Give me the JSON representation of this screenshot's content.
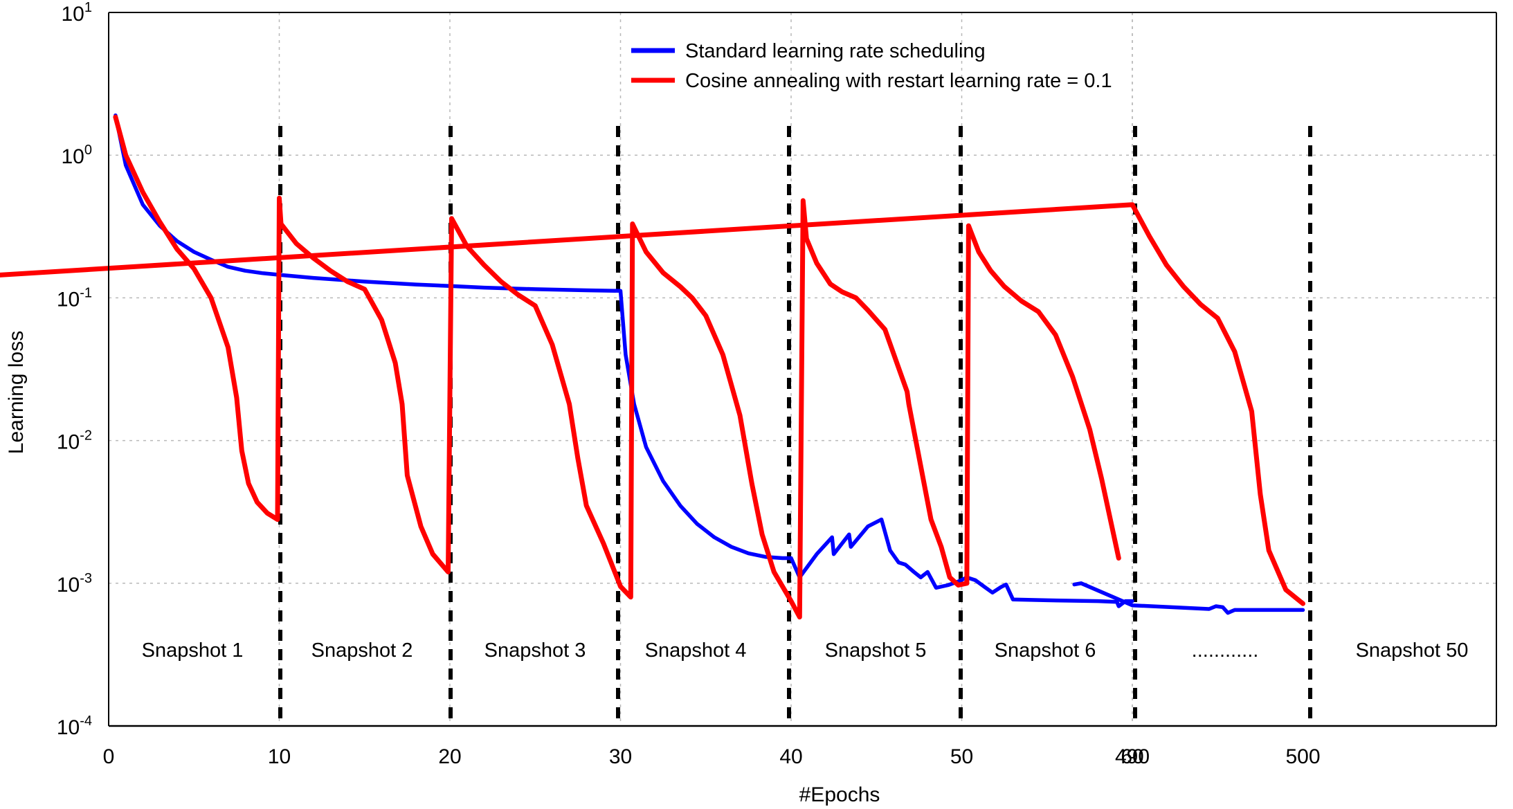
{
  "chart_data": {
    "type": "line",
    "title": "",
    "xlabel": "#Epochs",
    "ylabel": "Learning loss",
    "y_scale": "log",
    "ylim": [
      0.0001,
      10
    ],
    "y_ticks": [
      {
        "base": "10",
        "exp": "1",
        "value": 10
      },
      {
        "base": "10",
        "exp": "0",
        "value": 1
      },
      {
        "base": "10",
        "exp": "-1",
        "value": 0.1
      },
      {
        "base": "10",
        "exp": "-2",
        "value": 0.01
      },
      {
        "base": "10",
        "exp": "-3",
        "value": 0.001
      },
      {
        "base": "10",
        "exp": "-4",
        "value": 0.0001
      }
    ],
    "x_ticks": [
      "0",
      "10",
      "20",
      "30",
      "40",
      "50",
      "60",
      "490",
      "500"
    ],
    "grid": true,
    "legend_position": "top-center",
    "snapshot_labels": [
      "Snapshot 1",
      "Snapshot 2",
      "Snapshot 3",
      "Snapshot 4",
      "Snapshot 5",
      "Snapshot 6",
      "............",
      "Snapshot 50"
    ],
    "series": [
      {
        "name": "Standard learning rate scheduling",
        "color": "#0000ff",
        "points": [
          [
            0.4,
            1.9
          ],
          [
            1,
            0.85
          ],
          [
            2,
            0.45
          ],
          [
            3,
            0.32
          ],
          [
            4,
            0.25
          ],
          [
            5,
            0.21
          ],
          [
            6,
            0.185
          ],
          [
            7,
            0.165
          ],
          [
            8,
            0.155
          ],
          [
            9,
            0.149
          ],
          [
            10,
            0.145
          ],
          [
            12,
            0.138
          ],
          [
            15,
            0.13
          ],
          [
            18,
            0.124
          ],
          [
            20,
            0.121
          ],
          [
            22,
            0.118
          ],
          [
            25,
            0.115
          ],
          [
            28,
            0.113
          ],
          [
            30,
            0.112
          ],
          [
            30.3,
            0.04
          ],
          [
            30.8,
            0.018
          ],
          [
            31.5,
            0.009
          ],
          [
            32.5,
            0.0052
          ],
          [
            33.5,
            0.0035
          ],
          [
            34.5,
            0.0026
          ],
          [
            35.5,
            0.0021
          ],
          [
            36.5,
            0.0018
          ],
          [
            37.5,
            0.00162
          ],
          [
            38.5,
            0.00153
          ],
          [
            39.5,
            0.0015
          ],
          [
            40,
            0.0015
          ],
          [
            40.5,
            0.0011
          ],
          [
            41.5,
            0.0016
          ],
          [
            42.4,
            0.0021
          ],
          [
            42.5,
            0.0016
          ],
          [
            43.4,
            0.0022
          ],
          [
            43.5,
            0.0018
          ],
          [
            44.5,
            0.0025
          ],
          [
            45.3,
            0.0028
          ],
          [
            45.8,
            0.0017
          ],
          [
            46.3,
            0.0014
          ],
          [
            46.7,
            0.00135
          ],
          [
            47.2,
            0.0012
          ],
          [
            47.6,
            0.0011
          ],
          [
            48,
            0.0012
          ],
          [
            48.5,
            0.00093
          ],
          [
            49.2,
            0.00097
          ],
          [
            49.8,
            0.00103
          ],
          [
            50.3,
            0.0011
          ],
          [
            50.8,
            0.00105
          ],
          [
            51.3,
            0.00095
          ],
          [
            51.8,
            0.00086
          ],
          [
            52.3,
            0.00094
          ],
          [
            52.6,
            0.00098
          ],
          [
            53,
            0.00077
          ],
          [
            55,
            0.00076
          ],
          [
            58,
            0.00075
          ],
          [
            59.1,
            0.00074
          ],
          [
            59.2,
            0.00069
          ],
          [
            59.6,
            0.00075
          ],
          [
            60,
            0.00075
          ],
          [
            486.6,
            0.00098
          ],
          [
            487,
            0.001
          ],
          [
            490,
            0.0007
          ],
          [
            494.5,
            0.00066
          ],
          [
            494.9,
            0.00069
          ],
          [
            495.3,
            0.00068
          ],
          [
            495.6,
            0.00062
          ],
          [
            496,
            0.00065
          ],
          [
            500,
            0.00065
          ]
        ]
      },
      {
        "name": "Cosine annealing with restart learning rate = 0.1",
        "color": "#ff0000",
        "points": [
          [
            0.4,
            1.85
          ],
          [
            1,
            1.0
          ],
          [
            2,
            0.55
          ],
          [
            3,
            0.34
          ],
          [
            4,
            0.22
          ],
          [
            5,
            0.16
          ],
          [
            6,
            0.1
          ],
          [
            7,
            0.045
          ],
          [
            7.5,
            0.02
          ],
          [
            7.8,
            0.0085
          ],
          [
            8.2,
            0.005
          ],
          [
            8.7,
            0.0037
          ],
          [
            9.3,
            0.0031
          ],
          [
            9.9,
            0.0028
          ],
          [
            10,
            0.5
          ],
          [
            10.1,
            0.33
          ],
          [
            11,
            0.24
          ],
          [
            12,
            0.19
          ],
          [
            13,
            0.155
          ],
          [
            14,
            0.13
          ],
          [
            15,
            0.115
          ],
          [
            16,
            0.07
          ],
          [
            16.8,
            0.035
          ],
          [
            17.2,
            0.018
          ],
          [
            17.5,
            0.0057
          ],
          [
            18.3,
            0.0025
          ],
          [
            19,
            0.0016
          ],
          [
            19.9,
            0.0012
          ],
          [
            20.1,
            0.36
          ],
          [
            21,
            0.23
          ],
          [
            22,
            0.17
          ],
          [
            23,
            0.13
          ],
          [
            24,
            0.105
          ],
          [
            25,
            0.088
          ],
          [
            26,
            0.047
          ],
          [
            27,
            0.018
          ],
          [
            27.5,
            0.0075
          ],
          [
            28,
            0.0035
          ],
          [
            29,
            0.0019
          ],
          [
            30,
            0.00095
          ],
          [
            30.6,
            0.0008
          ],
          [
            30.7,
            0.33
          ],
          [
            31.5,
            0.21
          ],
          [
            32.5,
            0.15
          ],
          [
            33.5,
            0.12
          ],
          [
            34.2,
            0.1
          ],
          [
            35,
            0.075
          ],
          [
            36,
            0.04
          ],
          [
            37,
            0.015
          ],
          [
            37.7,
            0.005
          ],
          [
            38.3,
            0.0022
          ],
          [
            39,
            0.0012
          ],
          [
            40,
            0.00075
          ],
          [
            40.5,
            0.00058
          ],
          [
            40.7,
            0.48
          ],
          [
            40.9,
            0.26
          ],
          [
            41.5,
            0.175
          ],
          [
            42.3,
            0.125
          ],
          [
            43,
            0.11
          ],
          [
            43.8,
            0.1
          ],
          [
            44.5,
            0.082
          ],
          [
            45.5,
            0.06
          ],
          [
            46.2,
            0.035
          ],
          [
            46.8,
            0.022
          ],
          [
            46.9,
            0.018
          ],
          [
            48.2,
            0.0028
          ],
          [
            48.8,
            0.0018
          ],
          [
            49.3,
            0.0011
          ],
          [
            49.8,
            0.00097
          ],
          [
            50.3,
            0.001
          ],
          [
            50.4,
            0.32
          ],
          [
            51,
            0.21
          ],
          [
            51.7,
            0.155
          ],
          [
            52.5,
            0.12
          ],
          [
            53.5,
            0.095
          ],
          [
            54.5,
            0.08
          ],
          [
            55.5,
            0.055
          ],
          [
            56.5,
            0.028
          ],
          [
            57.5,
            0.012
          ],
          [
            58.2,
            0.0054
          ],
          [
            59.2,
            0.0015
          ],
          [
            60.1,
            0.00075
          ],
          [
            60.4,
            0.38
          ],
          [
            61.3,
            0.23
          ],
          [
            62.5,
            0.15
          ],
          [
            63.5,
            0.11
          ],
          [
            64.5,
            0.09
          ],
          [
            65.5,
            0.075
          ],
          [
            66.5,
            0.055
          ],
          [
            67.2,
            0.03
          ],
          [
            67.8,
            0.0085
          ],
          [
            67.9,
            0.0045
          ],
          [
            68.6,
            0.0016
          ],
          [
            69.4,
            0.00065
          ],
          [
            70,
            0.00034
          ],
          [
            490,
            0.45
          ],
          [
            491,
            0.27
          ],
          [
            492,
            0.17
          ],
          [
            493,
            0.12
          ],
          [
            494,
            0.09
          ],
          [
            495,
            0.072
          ],
          [
            496,
            0.042
          ],
          [
            497,
            0.016
          ],
          [
            497.5,
            0.0042
          ],
          [
            498,
            0.0017
          ],
          [
            499,
            0.0009
          ],
          [
            500,
            0.00072
          ]
        ]
      }
    ]
  }
}
